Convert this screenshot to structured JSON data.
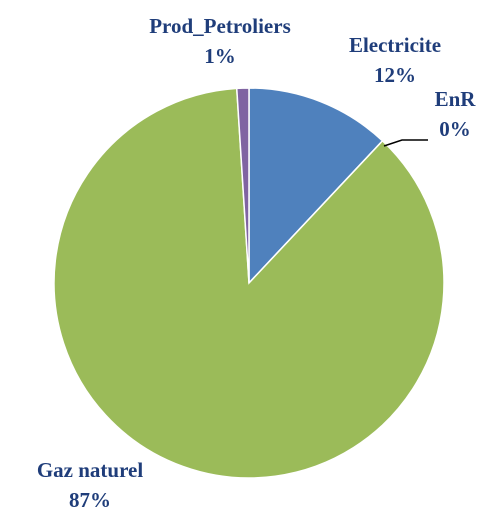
{
  "chart_data": {
    "type": "pie",
    "categories": [
      "Electricite",
      "EnR",
      "Gaz naturel",
      "Prod_Petroliers"
    ],
    "values": [
      12,
      0,
      87,
      1
    ],
    "value_labels": [
      "12%",
      "0%",
      "87%",
      "1%"
    ],
    "colors": [
      "#4f81bd",
      "#c0504d",
      "#9bbb59",
      "#8064a2"
    ]
  }
}
